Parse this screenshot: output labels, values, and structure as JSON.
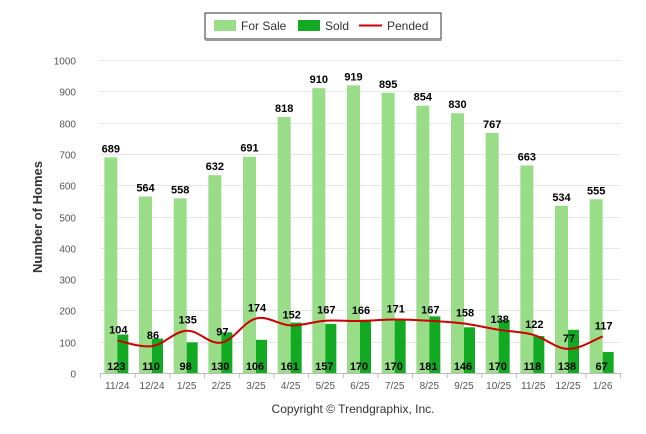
{
  "chart_data": {
    "type": "bar",
    "categories": [
      "11/24",
      "12/24",
      "1/25",
      "2/25",
      "3/25",
      "4/25",
      "5/25",
      "6/25",
      "7/25",
      "8/25",
      "9/25",
      "10/25",
      "11/25",
      "12/25",
      "1/26"
    ],
    "series": [
      {
        "name": "For Sale",
        "type": "bar",
        "color": "#99dd88",
        "values": [
          689,
          564,
          558,
          632,
          691,
          818,
          910,
          919,
          895,
          854,
          830,
          767,
          663,
          534,
          555
        ]
      },
      {
        "name": "Sold",
        "type": "bar",
        "color": "#11aa22",
        "values": [
          123,
          110,
          98,
          130,
          106,
          161,
          157,
          170,
          170,
          181,
          146,
          170,
          118,
          138,
          67
        ]
      },
      {
        "name": "Pended",
        "type": "line",
        "color": "#cc0000",
        "values": [
          104,
          86,
          135,
          97,
          174,
          152,
          167,
          166,
          171,
          167,
          158,
          138,
          122,
          77,
          117
        ]
      }
    ],
    "ylabel": "Number of Homes",
    "xlabel": "",
    "ylim": [
      0,
      1000
    ],
    "yticks": [
      0,
      100,
      200,
      300,
      400,
      500,
      600,
      700,
      800,
      900,
      1000
    ],
    "grid": true,
    "legend": "top-center"
  },
  "footer": {
    "credit": "Copyright © Trendgraphix, Inc."
  }
}
